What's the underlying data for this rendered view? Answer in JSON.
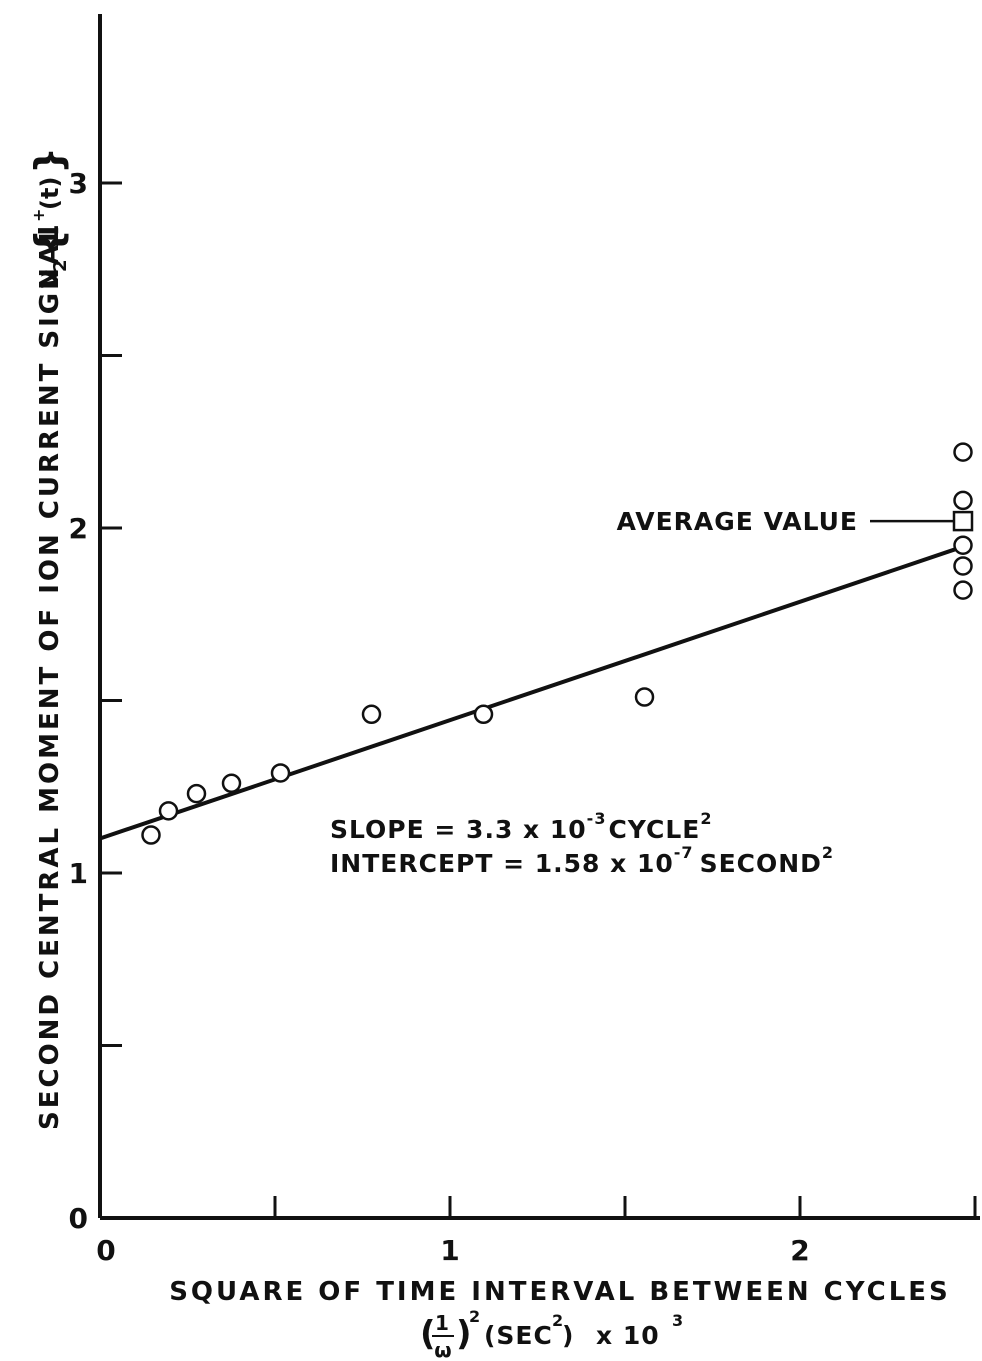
{
  "chart_data": {
    "type": "scatter",
    "xlabel": "SQUARE OF TIME INTERVAL BETWEEN CYCLES",
    "xlabel_line2": {
      "paren_open": "(",
      "frac_num": "1",
      "frac_den": "ω",
      "paren_close": ")",
      "sq1": "2",
      "unit_open": "(SEC",
      "sq2": "2",
      "unit_close": ")",
      "mult": "x 10",
      "exp": "3"
    },
    "ylabel": "SECOND CENTRAL MOMENT OF ION CURRENT SIGNAL",
    "ylabel_symbol": {
      "nu": "ν",
      "sub": "2",
      "brace_open": "{",
      "I": "I",
      "plus": "+",
      "t": "(t)",
      "brace_close": "}"
    },
    "xlim": [
      0,
      2.5
    ],
    "ylim": [
      0,
      3.5
    ],
    "x_ticks": [
      0,
      1,
      2
    ],
    "x_tick_labels": [
      "0",
      "1",
      "2"
    ],
    "y_ticks": [
      0,
      1,
      2,
      3
    ],
    "y_tick_labels": [
      "0",
      "1",
      "2",
      "3"
    ],
    "points": [
      {
        "x": 0.18,
        "y": 1.11
      },
      {
        "x": 0.23,
        "y": 1.18
      },
      {
        "x": 0.31,
        "y": 1.23
      },
      {
        "x": 0.41,
        "y": 1.26
      },
      {
        "x": 0.55,
        "y": 1.29
      },
      {
        "x": 0.81,
        "y": 1.46
      },
      {
        "x": 1.13,
        "y": 1.46
      },
      {
        "x": 1.59,
        "y": 1.51
      },
      {
        "x": 2.5,
        "y": 2.22
      },
      {
        "x": 2.5,
        "y": 2.08
      },
      {
        "x": 2.5,
        "y": 1.95
      },
      {
        "x": 2.5,
        "y": 1.89
      },
      {
        "x": 2.5,
        "y": 1.82
      }
    ],
    "fit_line": {
      "x": [
        0,
        2.5
      ],
      "y": [
        1.1,
        1.94
      ]
    },
    "average_value": {
      "x": 2.5,
      "y": 2.02,
      "label": "AVERAGE VALUE"
    },
    "annotations": {
      "slope": {
        "text": "SLOPE = 3.3 x 10",
        "exp": "-3",
        "unit": "CYCLE",
        "unit_exp": "2"
      },
      "intercept": {
        "text": "INTERCEPT = 1.58 x 10",
        "exp": "-7",
        "unit": "SECOND",
        "unit_exp": "2"
      }
    },
    "grid": false,
    "legend": "none"
  }
}
